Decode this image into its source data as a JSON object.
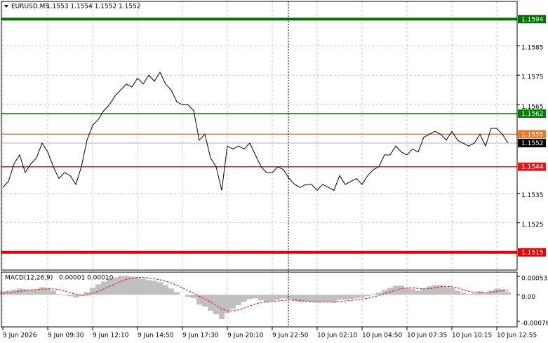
{
  "chart_data": [
    {
      "type": "line",
      "title": "EURUSD,M5",
      "quote": "1.1553 1.1554 1.1552 1.1552",
      "color": "#000000",
      "categories": [
        "9 Jun 2026",
        null,
        null,
        null,
        null,
        null,
        null,
        null,
        "9 Jun 09:30",
        null,
        null,
        null,
        null,
        null,
        null,
        null,
        "9 Jun 12:10",
        null,
        null,
        null,
        null,
        null,
        null,
        null,
        "9 Jun 14:50",
        null,
        null,
        null,
        null,
        null,
        null,
        null,
        "9 Jun 17:30",
        null,
        null,
        null,
        null,
        null,
        null,
        null,
        "9 Jun 20:10",
        null,
        null,
        null,
        null,
        null,
        null,
        null,
        "9 Jun 22:50",
        null,
        null,
        null,
        null,
        null,
        null,
        null,
        "10 Jun 02:10",
        null,
        null,
        null,
        null,
        null,
        null,
        null,
        "10 Jun 04:50",
        null,
        null,
        null,
        null,
        null,
        null,
        null,
        "10 Jun 07:35",
        null,
        null,
        null,
        null,
        null,
        null,
        null,
        "10 Jun 10:15",
        null,
        null,
        null,
        null,
        null,
        null,
        null,
        "10 Jun 12:55",
        null,
        null
      ],
      "values": [
        1.1537,
        1.1539,
        1.1545,
        1.1548,
        1.1542,
        1.1545,
        1.1547,
        1.1552,
        1.1549,
        1.1544,
        1.154,
        1.1542,
        1.1541,
        1.1538,
        1.1544,
        1.1553,
        1.1558,
        1.156,
        1.1563,
        1.1565,
        1.1568,
        1.157,
        1.1572,
        1.1571,
        1.1574,
        1.1572,
        1.1575,
        1.1573,
        1.1576,
        1.1572,
        1.157,
        1.1566,
        1.1565,
        1.1565,
        1.1563,
        1.1553,
        1.1555,
        1.1547,
        1.1544,
        1.1536,
        1.1551,
        1.155,
        1.1551,
        1.155,
        1.1552,
        1.1548,
        1.1544,
        1.1542,
        1.1542,
        1.1544,
        1.1543,
        1.154,
        1.1538,
        1.1537,
        1.1538,
        1.1538,
        1.1536,
        1.1538,
        1.1537,
        1.1536,
        1.1541,
        1.1538,
        1.1539,
        1.154,
        1.1538,
        1.1541,
        1.1543,
        1.1544,
        1.1548,
        1.1548,
        1.1551,
        1.1549,
        1.1548,
        1.155,
        1.1549,
        1.1554,
        1.1555,
        1.1556,
        1.1555,
        1.1553,
        1.1556,
        1.1553,
        1.1552,
        1.1551,
        1.1552,
        1.1555,
        1.1551,
        1.1557,
        1.1557,
        1.1555,
        1.1552
      ],
      "ylim": [
        1.1509,
        1.16
      ],
      "yticks": [
        1.1585,
        1.1575,
        1.1565,
        1.1535,
        1.1525
      ],
      "grid": true,
      "levels": [
        {
          "value": 1.1594,
          "color": "#007000",
          "bold": true
        },
        {
          "value": 1.1562,
          "color": "#008000",
          "bold": false
        },
        {
          "value": 1.1555,
          "color": "#e8782a",
          "bold": false
        },
        {
          "value": 1.1552,
          "color": "#000000",
          "bold": false
        },
        {
          "value": 1.1544,
          "color": "#e81818",
          "bold": false
        },
        {
          "value": 1.1515,
          "color": "#e80000",
          "bold": true
        }
      ]
    },
    {
      "type": "macd",
      "title": "MACD(12,26,9)",
      "quote": "0.00001 0.00010",
      "ylim": [
        -0.00092,
        0.00065
      ],
      "yticks": [
        0.00053,
        {
          "value": 0,
          "label": "0.00"
        },
        -0.00076
      ],
      "histogram": {
        "color": "#c0c0c0",
        "values": [
          0.0001,
          0.00012,
          0.00015,
          0.00018,
          0.00016,
          0.00014,
          0.00016,
          0.00022,
          0.0002,
          0.00012,
          2e-05,
          -2e-05,
          -4e-05,
          -8e-05,
          -4e-05,
          8e-05,
          0.0002,
          0.0003,
          0.00038,
          0.00045,
          0.0005,
          0.00054,
          0.00055,
          0.00052,
          0.0005,
          0.00046,
          0.00042,
          0.0004,
          0.00036,
          0.00028,
          0.00018,
          8e-05,
          0.0,
          -6e-05,
          -0.0001,
          -0.00028,
          -0.00034,
          -0.00046,
          -0.00056,
          -0.0007,
          -0.00052,
          -0.0004,
          -0.0003,
          -0.0002,
          -0.00012,
          -0.0001,
          -0.00016,
          -0.0002,
          -0.00018,
          -0.00014,
          -0.0001,
          -0.00012,
          -0.00018,
          -0.00022,
          -0.0002,
          -0.0002,
          -0.00022,
          -0.0002,
          -0.0002,
          -0.00022,
          -0.00014,
          -0.00014,
          -0.00012,
          -0.0001,
          -8e-05,
          -4e-05,
          2e-05,
          6e-05,
          0.00014,
          0.0002,
          0.00026,
          0.00026,
          0.0002,
          0.00016,
          0.00012,
          0.00018,
          0.00024,
          0.00028,
          0.00028,
          0.00022,
          0.0002,
          0.00012,
          6e-05,
          2e-05,
          4e-05,
          0.0001,
          6e-05,
          0.00012,
          0.00018,
          0.00016,
          8e-05
        ]
      },
      "signal": {
        "color": "#e00000",
        "values": [
          4e-05,
          6e-05,
          8e-05,
          0.0001,
          0.00012,
          0.00014,
          0.00015,
          0.00016,
          0.00017,
          0.00017,
          0.00015,
          0.00011,
          6e-05,
          2e-05,
          -1e-05,
          0.0,
          4e-05,
          0.0001,
          0.00017,
          0.00024,
          0.00031,
          0.00038,
          0.00044,
          0.00048,
          0.0005,
          0.0005,
          0.00048,
          0.00046,
          0.00043,
          0.00039,
          0.00034,
          0.00027,
          0.0002,
          0.00012,
          5e-05,
          -4e-05,
          -0.00012,
          -0.0002,
          -0.0003,
          -0.0004,
          -0.00046,
          -0.00046,
          -0.00043,
          -0.00038,
          -0.00032,
          -0.00026,
          -0.00022,
          -0.0002,
          -0.00019,
          -0.00018,
          -0.00016,
          -0.00015,
          -0.00015,
          -0.00016,
          -0.00018,
          -0.00019,
          -0.0002,
          -0.0002,
          -0.0002,
          -0.00021,
          -0.00019,
          -0.00018,
          -0.00016,
          -0.00014,
          -0.00012,
          -0.0001,
          -6e-05,
          -2e-05,
          3e-05,
          8e-05,
          0.00013,
          0.00018,
          0.0002,
          0.0002,
          0.00018,
          0.00017,
          0.00018,
          0.0002,
          0.00023,
          0.00024,
          0.00023,
          0.0002,
          0.00015,
          0.0001,
          7e-05,
          6e-05,
          6e-05,
          8e-05,
          0.0001,
          0.00012,
          0.00012
        ]
      }
    }
  ]
}
